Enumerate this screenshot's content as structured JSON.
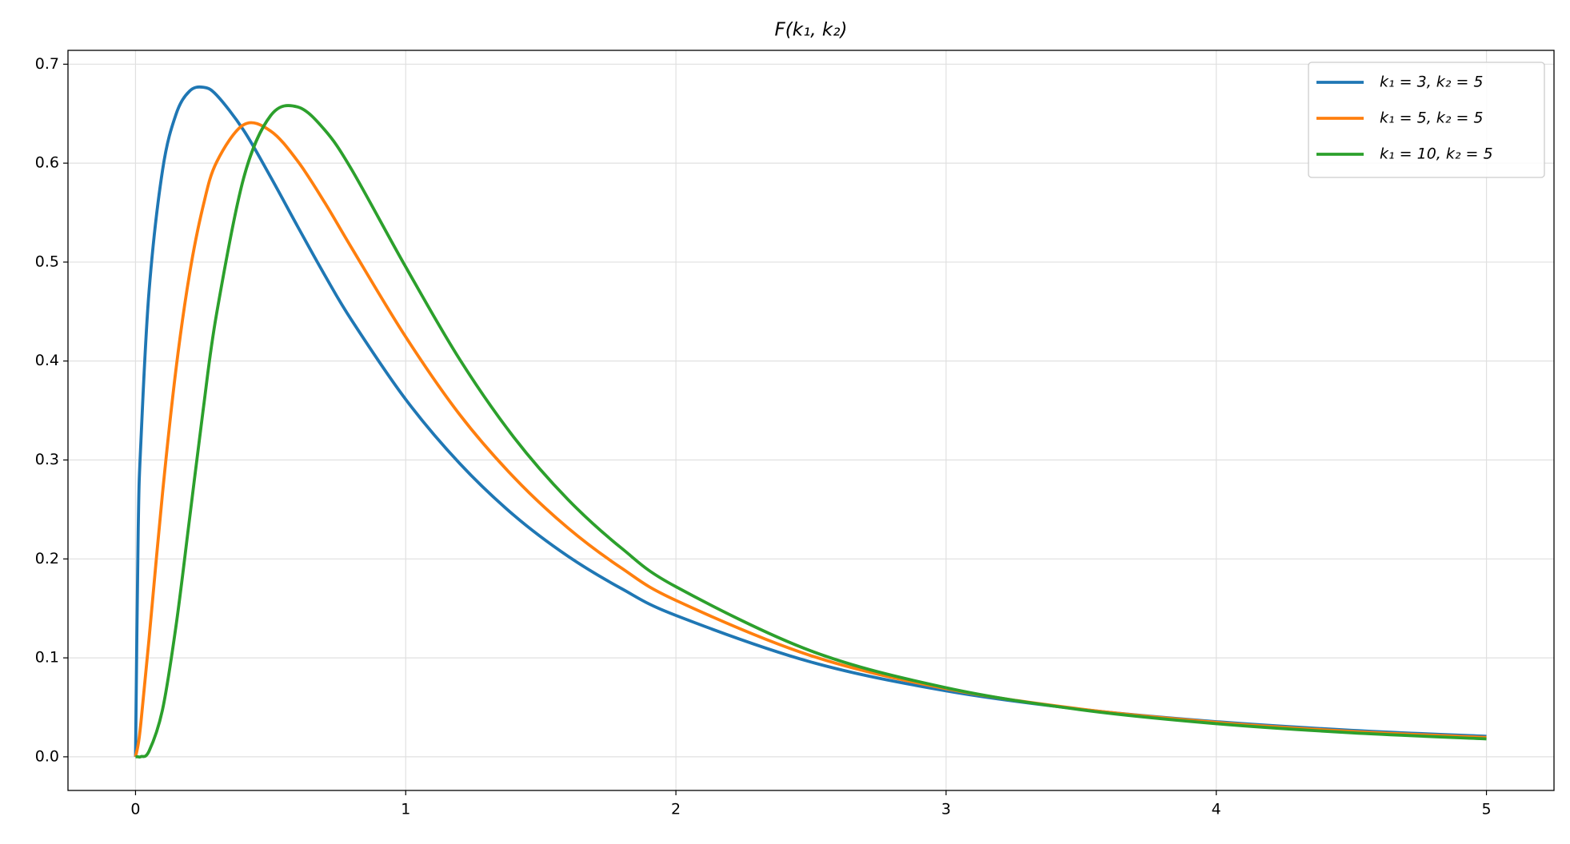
{
  "chart_data": {
    "type": "line",
    "title": "F(k₁, k₂)",
    "x": [
      0,
      0.01,
      0.02,
      0.05,
      0.1,
      0.15,
      0.2,
      0.25,
      0.3,
      0.4,
      0.5,
      0.6,
      0.7,
      0.8,
      1.0,
      1.2,
      1.4,
      1.6,
      1.8,
      2.0,
      2.5,
      3.0,
      3.5,
      4.0,
      4.5,
      5.0
    ],
    "series": [
      {
        "name": "k₁ = 3, k₂ = 5",
        "color": "#1f77b4",
        "values": [
          0,
          0.2311,
          0.3191,
          0.4703,
          0.5929,
          0.6495,
          0.6728,
          0.6767,
          0.6688,
          0.6333,
          0.586,
          0.536,
          0.487,
          0.4412,
          0.3612,
          0.2964,
          0.2442,
          0.2028,
          0.1698,
          0.1429,
          0.0958,
          0.0667,
          0.048,
          0.0355,
          0.0268,
          0.0207
        ]
      },
      {
        "name": "k₁ = 5, k₂ = 5",
        "color": "#ff7f0e",
        "values": [
          0,
          0.0129,
          0.0348,
          0.119,
          0.2667,
          0.3923,
          0.4882,
          0.5564,
          0.601,
          0.6388,
          0.6325,
          0.6021,
          0.5603,
          0.5143,
          0.4244,
          0.3458,
          0.2826,
          0.2314,
          0.1905,
          0.1581,
          0.1022,
          0.0689,
          0.0482,
          0.0348,
          0.0257,
          0.0195
        ]
      },
      {
        "name": "k₁ = 10, k₂ = 5",
        "color": "#2ca02c",
        "values": [
          0,
          2e-05,
          0.0002,
          0.0057,
          0.0478,
          0.1326,
          0.2407,
          0.35,
          0.4478,
          0.5848,
          0.648,
          0.6568,
          0.6336,
          0.5935,
          0.4951,
          0.4016,
          0.323,
          0.2602,
          0.2106,
          0.1719,
          0.107,
          0.0698,
          0.0475,
          0.0335,
          0.0243,
          0.0181
        ]
      }
    ],
    "xlim": [
      -0.25,
      5.25
    ],
    "ylim": [
      -0.034,
      0.714
    ],
    "xticks": [
      0,
      1,
      2,
      3,
      4,
      5
    ],
    "yticks": [
      {
        "value": 0,
        "label": "0.0"
      },
      0.1,
      0.2,
      0.3,
      0.4,
      0.5,
      0.6,
      0.7
    ],
    "grid": true,
    "legend": "upper right"
  }
}
